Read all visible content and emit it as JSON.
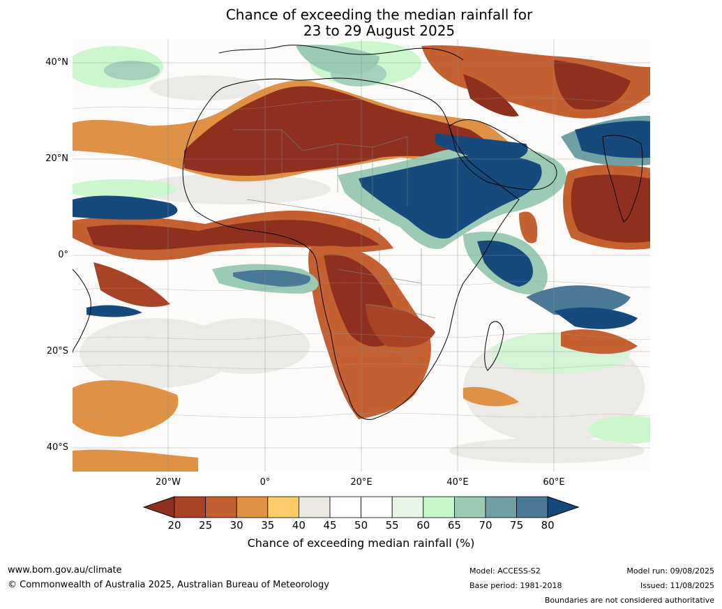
{
  "title": {
    "line1": "Chance of exceeding the median rainfall for",
    "line2": "23 to 29 August 2025"
  },
  "map": {
    "latitude_labels": [
      "40°N",
      "20°N",
      "0°",
      "20°S",
      "40°S"
    ],
    "longitude_labels": [
      "20°W",
      "0°",
      "20°E",
      "40°E",
      "60°E"
    ],
    "colorbar": {
      "ticks": [
        "20",
        "25",
        "30",
        "35",
        "40",
        "45",
        "50",
        "55",
        "60",
        "65",
        "70",
        "75",
        "80"
      ],
      "colors": [
        "#8f301f",
        "#a84327",
        "#c56030",
        "#df9246",
        "#fdcb68",
        "#ebe8e4",
        "#ffffff",
        "#ffffff",
        "#e7f5e6",
        "#c6f6c9",
        "#9ccbb5",
        "#6fa0a4",
        "#4a7897",
        "#164a7d"
      ],
      "label": "Chance of exceeding median rainfall (%)"
    }
  },
  "footer": {
    "website": "www.bom.gov.au/climate",
    "copyright": "© Commonwealth of Australia 2025, Australian Bureau of Meteorology",
    "model": "Model: ACCESS-S2",
    "base_period": "Base period: 1981-2018",
    "model_run": "Model run: 09/08/2025",
    "issued": "Issued: 11/08/2025",
    "disclaimer": "Boundaries are not considered authoritative"
  }
}
